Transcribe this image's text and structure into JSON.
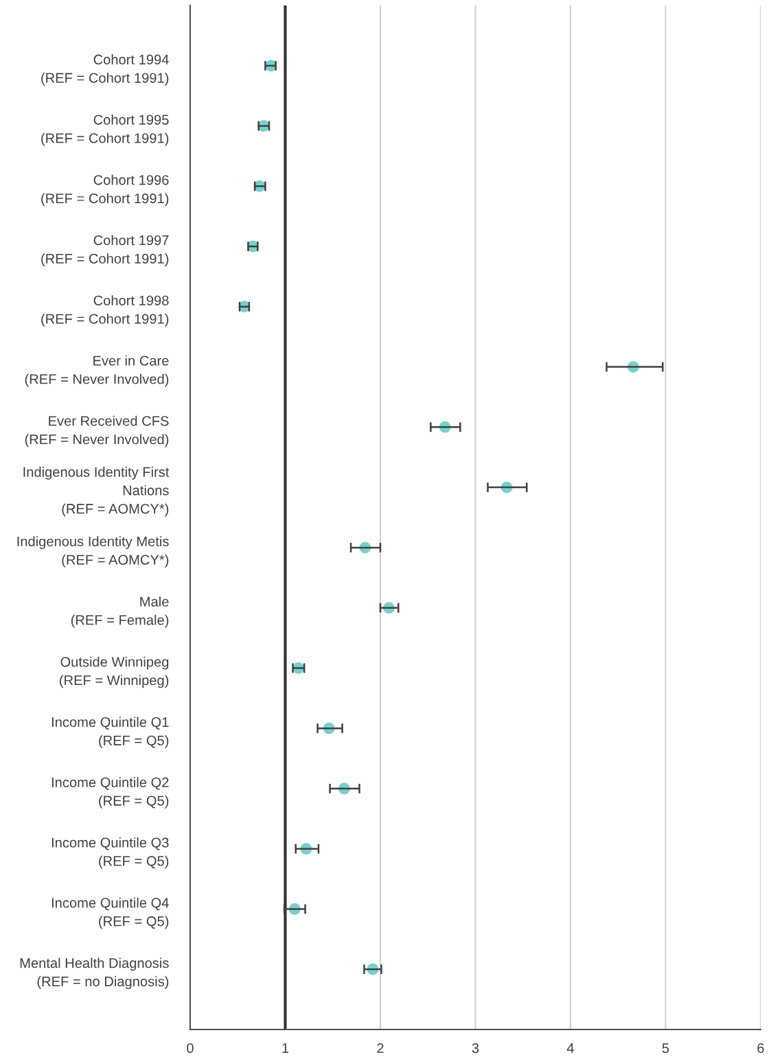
{
  "chart_data": {
    "type": "scatter",
    "orientation": "horizontal",
    "categories": [
      "Cohort 1994\n(REF = Cohort 1991)",
      "Cohort 1995\n(REF = Cohort 1991)",
      "Cohort 1996\n(REF = Cohort 1991)",
      "Cohort 1997\n(REF = Cohort 1991)",
      "Cohort 1998\n(REF = Cohort 1991)",
      "Ever in Care\n(REF = Never Involved)",
      "Ever Received CFS\n(REF = Never Involved)",
      "Indigenous Identity First\nNations\n(REF = AOMCY*)",
      "Indigenous Identity Metis\n(REF = AOMCY*)",
      "Male\n(REF = Female)",
      "Outside Winnipeg\n(REF = Winnipeg)",
      "Income Quintile Q1\n(REF = Q5)",
      "Income Quintile Q2\n(REF = Q5)",
      "Income Quintile Q3\n(REF = Q5)",
      "Income Quintile Q4\n(REF = Q5)",
      "Mental Health Diagnosis\n(REF = no Diagnosis)"
    ],
    "values": [
      0.85,
      0.77,
      0.73,
      0.66,
      0.57,
      4.66,
      2.68,
      3.33,
      1.84,
      2.09,
      1.14,
      1.46,
      1.62,
      1.22,
      1.1,
      1.92
    ],
    "errors": [
      [
        0.79,
        0.9
      ],
      [
        0.72,
        0.83
      ],
      [
        0.68,
        0.79
      ],
      [
        0.61,
        0.71
      ],
      [
        0.52,
        0.62
      ],
      [
        4.38,
        4.97
      ],
      [
        2.53,
        2.84
      ],
      [
        3.13,
        3.54
      ],
      [
        1.69,
        2.0
      ],
      [
        2.0,
        2.19
      ],
      [
        1.08,
        1.2
      ],
      [
        1.34,
        1.6
      ],
      [
        1.47,
        1.78
      ],
      [
        1.11,
        1.35
      ],
      [
        0.99,
        1.21
      ],
      [
        1.83,
        2.01
      ]
    ],
    "colors": [
      "#78d0cc",
      "#78d0cc",
      "#78d0cc",
      "#78d0cc",
      "#78d0cc",
      "#78d0cc",
      "#78d0cc",
      "#78d0cc",
      "#78d0cc",
      "#78d0cc",
      "#78d0cc",
      "#78d0cc",
      "#78d0cc",
      "#78d0cc",
      "#78d0cc",
      "#78d0cc"
    ],
    "xlim": [
      0,
      6
    ],
    "xticks": [
      0,
      1,
      2,
      3,
      4,
      5,
      6
    ],
    "grid": "x",
    "marker": "circle",
    "legend": false,
    "ref_lines": [
      {
        "axis": "x",
        "value": 1,
        "color": "#333333",
        "line_style": "solid"
      }
    ]
  }
}
